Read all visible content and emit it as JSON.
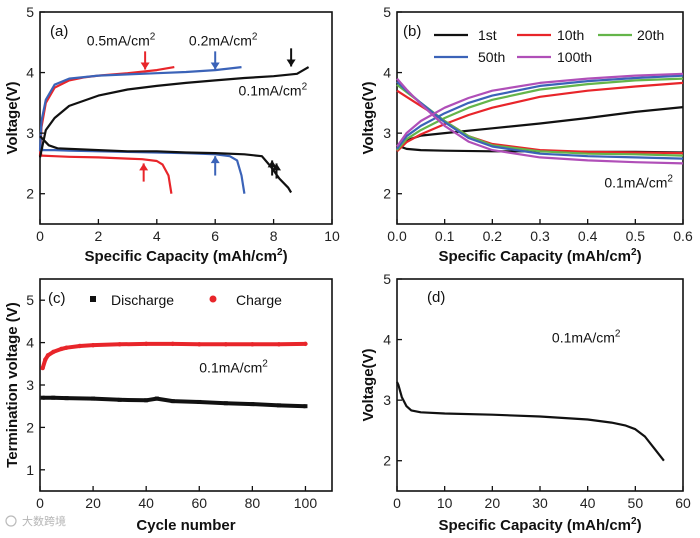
{
  "watermark": "大数跨境",
  "chart_data": [
    {
      "id": "a",
      "panel_label": "(a)",
      "type": "line",
      "xlabel": "Specific Capacity (mAh/cm",
      "xlabel_sup": "2",
      "xlabel_tail": ")",
      "ylabel": "Voltage(V)",
      "xlim": [
        0,
        10
      ],
      "ylim": [
        1.5,
        5
      ],
      "xticks": [
        0,
        2,
        4,
        6,
        8,
        10
      ],
      "yticks": [
        2,
        3,
        4,
        5
      ],
      "series": [
        {
          "name": "0.5mA/cm2 charge",
          "color": "#e8252a",
          "x": [
            0,
            0.05,
            0.2,
            0.5,
            1,
            1.5,
            2,
            3,
            4,
            4.6
          ],
          "y": [
            2.62,
            3.1,
            3.5,
            3.75,
            3.87,
            3.92,
            3.95,
            3.99,
            4.04,
            4.09
          ]
        },
        {
          "name": "0.5mA/cm2 discharge",
          "color": "#e8252a",
          "x": [
            0,
            0.05,
            0.5,
            1,
            2,
            3,
            3.5,
            4.0,
            4.2,
            4.4,
            4.5
          ],
          "y": [
            2.75,
            2.63,
            2.62,
            2.61,
            2.6,
            2.58,
            2.57,
            2.54,
            2.48,
            2.3,
            2.0
          ]
        },
        {
          "name": "0.2mA/cm2 charge",
          "color": "#3b63b8",
          "x": [
            0,
            0.05,
            0.2,
            0.5,
            1,
            2,
            3,
            4,
            5,
            6,
            6.9
          ],
          "y": [
            2.7,
            3.2,
            3.55,
            3.8,
            3.9,
            3.95,
            3.97,
            3.99,
            4.01,
            4.04,
            4.09
          ]
        },
        {
          "name": "0.2mA/cm2 discharge",
          "color": "#3b63b8",
          "x": [
            0,
            0.1,
            0.5,
            1,
            2,
            3,
            4,
            5,
            6,
            6.5,
            6.75,
            6.9,
            7.0
          ],
          "y": [
            2.8,
            2.72,
            2.72,
            2.71,
            2.7,
            2.69,
            2.68,
            2.67,
            2.65,
            2.62,
            2.55,
            2.3,
            2.0
          ]
        },
        {
          "name": "0.1mA/cm2 charge",
          "color": "#111111",
          "x": [
            0,
            0.2,
            0.5,
            1,
            2,
            3,
            4,
            5,
            6,
            7,
            8,
            8.8,
            9.2
          ],
          "y": [
            2.6,
            3.05,
            3.25,
            3.45,
            3.62,
            3.72,
            3.78,
            3.83,
            3.87,
            3.91,
            3.94,
            3.98,
            4.09
          ]
        },
        {
          "name": "0.1mA/cm2 discharge",
          "color": "#111111",
          "x": [
            0,
            0.3,
            0.6,
            1,
            2,
            3,
            4,
            5,
            6,
            7,
            7.6,
            7.9,
            8.2,
            8.5,
            8.6
          ],
          "y": [
            2.95,
            2.8,
            2.75,
            2.74,
            2.72,
            2.7,
            2.7,
            2.68,
            2.67,
            2.65,
            2.62,
            2.45,
            2.25,
            2.1,
            2.02
          ]
        }
      ],
      "annotations": [
        {
          "text": "0.5mA/cm",
          "sup": "2",
          "x": 1.6,
          "y": 4.45
        },
        {
          "text": "0.2mA/cm",
          "sup": "2",
          "x": 5.1,
          "y": 4.45
        },
        {
          "text": "0.1mA/cm",
          "sup": "2",
          "x": 6.8,
          "y": 3.62
        }
      ],
      "arrows": [
        {
          "x": 3.6,
          "from": 4.35,
          "to": 4.05,
          "color": "#e8252a"
        },
        {
          "x": 6.0,
          "from": 4.35,
          "to": 4.05,
          "color": "#3b63b8"
        },
        {
          "x": 8.6,
          "from": 4.4,
          "to": 4.1,
          "color": "#111111"
        },
        {
          "x": 3.55,
          "from": 2.2,
          "to": 2.5,
          "color": "#e8252a"
        },
        {
          "x": 6.0,
          "from": 2.3,
          "to": 2.62,
          "color": "#3b63b8"
        },
        {
          "x": 7.95,
          "from": 2.3,
          "to": 2.55,
          "color": "#111111"
        },
        {
          "x": 8.1,
          "from": 2.25,
          "to": 2.5,
          "color": "#111111"
        }
      ]
    },
    {
      "id": "b",
      "panel_label": "(b)",
      "type": "line",
      "xlabel": "Specific Capacity (mAh/cm",
      "xlabel_sup": "2",
      "xlabel_tail": ")",
      "ylabel": "Voltage(V)",
      "xlim": [
        0,
        0.6
      ],
      "ylim": [
        1.5,
        5
      ],
      "xticks": [
        0.0,
        0.1,
        0.2,
        0.3,
        0.4,
        0.5,
        0.6
      ],
      "yticks": [
        2,
        3,
        4,
        5
      ],
      "legend": [
        "1st",
        "10th",
        "20th",
        "50th",
        "100th"
      ],
      "series": [
        {
          "name": "1st charge",
          "color": "#111111",
          "x": [
            0,
            0.02,
            0.05,
            0.1,
            0.2,
            0.3,
            0.4,
            0.5,
            0.6
          ],
          "y": [
            2.75,
            2.88,
            2.96,
            3.0,
            3.08,
            3.16,
            3.25,
            3.35,
            3.43
          ]
        },
        {
          "name": "1st discharge",
          "color": "#111111",
          "x": [
            0,
            0.02,
            0.05,
            0.1,
            0.2,
            0.3,
            0.4,
            0.5,
            0.6
          ],
          "y": [
            2.8,
            2.74,
            2.72,
            2.71,
            2.7,
            2.7,
            2.69,
            2.69,
            2.68
          ]
        },
        {
          "name": "10th charge",
          "color": "#e8252a",
          "x": [
            0,
            0.02,
            0.05,
            0.1,
            0.15,
            0.2,
            0.3,
            0.4,
            0.5,
            0.6
          ],
          "y": [
            2.7,
            2.85,
            2.98,
            3.15,
            3.3,
            3.42,
            3.6,
            3.7,
            3.77,
            3.83
          ]
        },
        {
          "name": "10th discharge",
          "color": "#e8252a",
          "x": [
            0,
            0.02,
            0.05,
            0.1,
            0.15,
            0.2,
            0.3,
            0.4,
            0.5,
            0.6
          ],
          "y": [
            3.7,
            3.6,
            3.45,
            3.2,
            2.95,
            2.82,
            2.72,
            2.69,
            2.68,
            2.67
          ]
        },
        {
          "name": "20th charge",
          "color": "#64b54a",
          "x": [
            0,
            0.02,
            0.05,
            0.1,
            0.15,
            0.2,
            0.3,
            0.4,
            0.5,
            0.6
          ],
          "y": [
            2.72,
            2.9,
            3.05,
            3.25,
            3.42,
            3.55,
            3.72,
            3.81,
            3.87,
            3.9
          ]
        },
        {
          "name": "20th discharge",
          "color": "#64b54a",
          "x": [
            0,
            0.02,
            0.05,
            0.1,
            0.15,
            0.2,
            0.3,
            0.4,
            0.5,
            0.6
          ],
          "y": [
            3.8,
            3.68,
            3.5,
            3.2,
            2.95,
            2.8,
            2.7,
            2.66,
            2.65,
            2.63
          ]
        },
        {
          "name": "50th charge",
          "color": "#3b63b8",
          "x": [
            0,
            0.02,
            0.05,
            0.1,
            0.15,
            0.2,
            0.3,
            0.4,
            0.5,
            0.6
          ],
          "y": [
            2.74,
            2.95,
            3.12,
            3.33,
            3.5,
            3.62,
            3.78,
            3.86,
            3.91,
            3.95
          ]
        },
        {
          "name": "50th discharge",
          "color": "#3b63b8",
          "x": [
            0,
            0.02,
            0.05,
            0.1,
            0.15,
            0.2,
            0.3,
            0.4,
            0.5,
            0.6
          ],
          "y": [
            3.85,
            3.7,
            3.5,
            3.18,
            2.92,
            2.78,
            2.66,
            2.62,
            2.6,
            2.58
          ]
        },
        {
          "name": "100th charge",
          "color": "#b04fb8",
          "x": [
            0,
            0.02,
            0.05,
            0.1,
            0.15,
            0.2,
            0.3,
            0.4,
            0.5,
            0.6
          ],
          "y": [
            2.78,
            3.0,
            3.2,
            3.42,
            3.58,
            3.7,
            3.83,
            3.9,
            3.95,
            3.98
          ]
        },
        {
          "name": "100th discharge",
          "color": "#b04fb8",
          "x": [
            0,
            0.02,
            0.05,
            0.1,
            0.15,
            0.2,
            0.3,
            0.4,
            0.5,
            0.6
          ],
          "y": [
            3.9,
            3.72,
            3.48,
            3.12,
            2.86,
            2.72,
            2.6,
            2.55,
            2.52,
            2.5
          ]
        }
      ],
      "annotations": [
        {
          "text": "0.1mA/cm",
          "sup": "2",
          "x": 0.435,
          "y": 2.1
        }
      ]
    },
    {
      "id": "c",
      "panel_label": "(c)",
      "type": "scatter",
      "xlabel": "Cycle number",
      "xlabel_sup": "",
      "xlabel_tail": "",
      "ylabel": "Termination voltage (V)",
      "xlim": [
        0,
        110
      ],
      "ylim": [
        0.5,
        5.5
      ],
      "xticks": [
        0,
        20,
        40,
        60,
        80,
        100
      ],
      "yticks": [
        1,
        2,
        3,
        4,
        5
      ],
      "legend": [
        "Discharge",
        "Charge"
      ],
      "series": [
        {
          "name": "Discharge",
          "color": "#111111",
          "x": [
            1,
            5,
            10,
            20,
            30,
            40,
            44,
            50,
            60,
            70,
            80,
            90,
            100
          ],
          "y": [
            2.7,
            2.7,
            2.69,
            2.68,
            2.65,
            2.64,
            2.68,
            2.62,
            2.6,
            2.57,
            2.55,
            2.52,
            2.5
          ]
        },
        {
          "name": "Charge",
          "color": "#e8252a",
          "x": [
            1,
            2,
            3,
            5,
            8,
            10,
            15,
            20,
            30,
            40,
            50,
            60,
            70,
            80,
            90,
            100
          ],
          "y": [
            3.4,
            3.6,
            3.7,
            3.78,
            3.85,
            3.88,
            3.92,
            3.94,
            3.96,
            3.97,
            3.97,
            3.96,
            3.96,
            3.96,
            3.96,
            3.97
          ]
        }
      ],
      "annotations": [
        {
          "text": "0.1mA/cm",
          "sup": "2",
          "x": 60,
          "y": 3.3
        }
      ]
    },
    {
      "id": "d",
      "panel_label": "(d)",
      "type": "line",
      "xlabel": "Specific Capacity (mAh/cm",
      "xlabel_sup": "2",
      "xlabel_tail": ")",
      "ylabel": "Voltage(V)",
      "xlim": [
        0,
        60
      ],
      "ylim": [
        1.5,
        5
      ],
      "xticks": [
        0,
        10,
        20,
        30,
        40,
        50,
        60
      ],
      "yticks": [
        2,
        3,
        4,
        5
      ],
      "series": [
        {
          "name": "discharge",
          "color": "#111111",
          "x": [
            0,
            0.3,
            1,
            2,
            3,
            5,
            10,
            20,
            30,
            40,
            45,
            48,
            50,
            52,
            54,
            56
          ],
          "y": [
            3.3,
            3.25,
            3.05,
            2.9,
            2.83,
            2.8,
            2.78,
            2.76,
            2.73,
            2.68,
            2.63,
            2.58,
            2.52,
            2.4,
            2.2,
            2.0
          ]
        }
      ],
      "annotations": [
        {
          "text": "0.1mA/cm",
          "sup": "2",
          "x": 32.5,
          "y": 3.95
        }
      ]
    }
  ]
}
